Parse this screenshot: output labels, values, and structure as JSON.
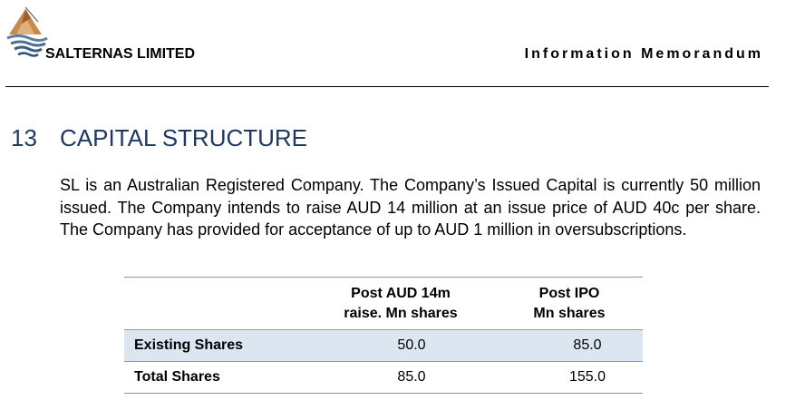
{
  "header": {
    "company_name": "SALTERNAS LIMITED",
    "document_title": "Information Memorandum"
  },
  "section": {
    "number": "13",
    "title": "CAPITAL STRUCTURE",
    "paragraph": "SL is an Australian Registered Company. The Company’s Issued Capital is currently 50 million issued. The Company intends to raise AUD 14 million at an issue price of AUD 40c per share. The Company has provided for acceptance of up to AUD 1 million in oversubscriptions."
  },
  "table": {
    "headers": [
      {
        "line1": "",
        "line2": ""
      },
      {
        "line1": "Post AUD 14m",
        "line2": "raise. Mn shares"
      },
      {
        "line1": "Post IPO",
        "line2": "Mn shares"
      }
    ],
    "rows": [
      {
        "label": "Existing Shares",
        "post_raise": "50.0",
        "post_ipo": "85.0"
      },
      {
        "label": "Total Shares",
        "post_raise": "85.0",
        "post_ipo": "155.0"
      }
    ],
    "shaded_row_color": "#dce6f1",
    "rule_color": "#7f9bb5"
  },
  "colors": {
    "heading": "#1f3864"
  },
  "icons": {
    "logo": "salternas-logo-icon"
  }
}
